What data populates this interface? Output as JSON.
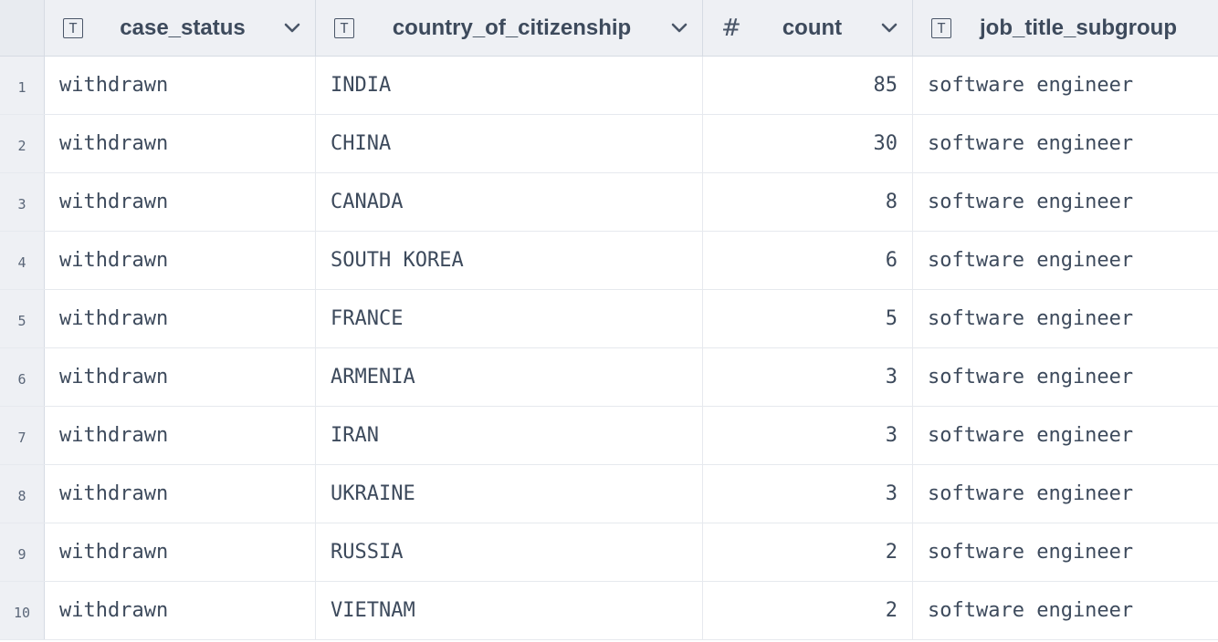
{
  "columns": [
    {
      "name": "case_status",
      "type_icon": "text-type-icon",
      "has_menu": true
    },
    {
      "name": "country_of_citizenship",
      "type_icon": "text-type-icon",
      "has_menu": true
    },
    {
      "name": "count",
      "type_icon": "number-type-icon",
      "has_menu": true
    },
    {
      "name": "job_title_subgroup",
      "type_icon": "text-type-icon",
      "has_menu": false
    }
  ],
  "rows": [
    {
      "num": "1",
      "case_status": "withdrawn",
      "country": "INDIA",
      "count": "85",
      "job": "software engineer"
    },
    {
      "num": "2",
      "case_status": "withdrawn",
      "country": "CHINA",
      "count": "30",
      "job": "software engineer"
    },
    {
      "num": "3",
      "case_status": "withdrawn",
      "country": "CANADA",
      "count": "8",
      "job": "software engineer"
    },
    {
      "num": "4",
      "case_status": "withdrawn",
      "country": "SOUTH KOREA",
      "count": "6",
      "job": "software engineer"
    },
    {
      "num": "5",
      "case_status": "withdrawn",
      "country": "FRANCE",
      "count": "5",
      "job": "software engineer"
    },
    {
      "num": "6",
      "case_status": "withdrawn",
      "country": "ARMENIA",
      "count": "3",
      "job": "software engineer"
    },
    {
      "num": "7",
      "case_status": "withdrawn",
      "country": "IRAN",
      "count": "3",
      "job": "software engineer"
    },
    {
      "num": "8",
      "case_status": "withdrawn",
      "country": "UKRAINE",
      "count": "3",
      "job": "software engineer"
    },
    {
      "num": "9",
      "case_status": "withdrawn",
      "country": "RUSSIA",
      "count": "2",
      "job": "software engineer"
    },
    {
      "num": "10",
      "case_status": "withdrawn",
      "country": "VIETNAM",
      "count": "2",
      "job": "software engineer"
    }
  ]
}
